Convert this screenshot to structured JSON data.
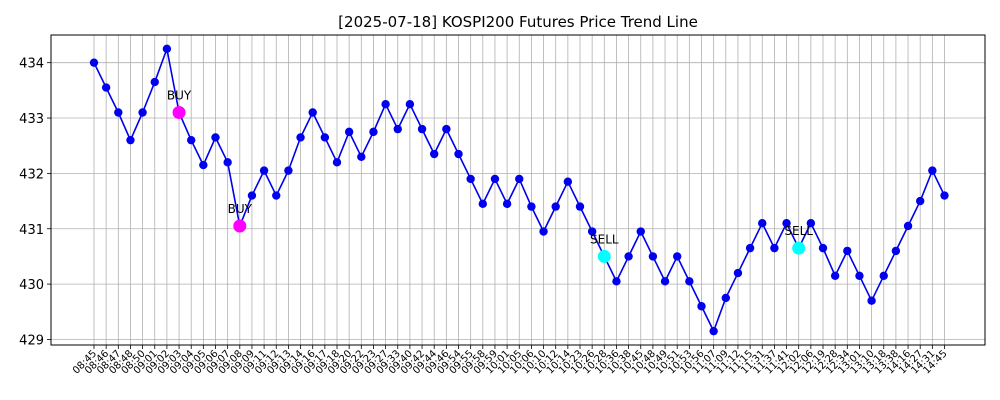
{
  "chart_data": {
    "type": "line",
    "title": "[2025-07-18] KOSPI200 Futures Price Trend Line",
    "xlabel": "",
    "ylabel": "",
    "ylim": [
      428.9,
      434.5
    ],
    "yticks": [
      429,
      430,
      431,
      432,
      433,
      434
    ],
    "grid": true,
    "line_color": "#0000ee",
    "x": [
      "08:45",
      "08:46",
      "08:47",
      "08:48",
      "08:50",
      "09:01",
      "09:02",
      "09:03",
      "09:04",
      "09:05",
      "09:06",
      "09:07",
      "09:08",
      "09:09",
      "09:11",
      "09:12",
      "09:13",
      "09:14",
      "09:16",
      "09:17",
      "09:18",
      "09:20",
      "09:22",
      "09:23",
      "09:27",
      "09:33",
      "09:40",
      "09:42",
      "09:44",
      "09:46",
      "09:54",
      "09:55",
      "09:58",
      "09:59",
      "10:01",
      "10:05",
      "10:06",
      "10:10",
      "10:12",
      "10:14",
      "10:23",
      "10:26",
      "10:28",
      "10:36",
      "10:38",
      "10:45",
      "10:48",
      "10:49",
      "10:51",
      "10:53",
      "10:56",
      "11:07",
      "11:09",
      "11:12",
      "11:15",
      "11:31",
      "11:37",
      "11:41",
      "12:02",
      "12:06",
      "12:19",
      "12:28",
      "12:34",
      "13:01",
      "13:10",
      "13:18",
      "13:38",
      "14:16",
      "14:27",
      "14:31",
      "14:45"
    ],
    "y": [
      434.0,
      433.55,
      433.1,
      432.6,
      433.1,
      433.65,
      434.25,
      433.1,
      432.6,
      432.15,
      432.65,
      432.2,
      431.05,
      431.6,
      432.05,
      431.6,
      432.05,
      432.65,
      433.1,
      432.65,
      432.2,
      432.75,
      432.3,
      432.75,
      433.25,
      432.8,
      433.25,
      432.8,
      432.35,
      432.8,
      432.35,
      431.9,
      431.45,
      431.9,
      431.45,
      431.9,
      431.4,
      430.95,
      431.4,
      431.85,
      431.4,
      430.95,
      430.5,
      430.05,
      430.5,
      430.95,
      430.5,
      430.05,
      430.5,
      430.05,
      429.6,
      429.15,
      429.75,
      430.2,
      430.65,
      431.1,
      430.65,
      431.1,
      430.65,
      431.1,
      430.65,
      430.15,
      430.6,
      430.15,
      429.7,
      430.15,
      430.6,
      431.05,
      431.5,
      432.05,
      431.6
    ],
    "signals": [
      {
        "label": "BUY",
        "index": 7,
        "value": 433.1,
        "color": "#ff00ff"
      },
      {
        "label": "BUY",
        "index": 12,
        "value": 431.05,
        "color": "#ff00ff"
      },
      {
        "label": "SELL",
        "index": 42,
        "value": 430.5,
        "color": "#00ffff"
      },
      {
        "label": "SELL",
        "index": 58,
        "value": 430.65,
        "color": "#00ffff"
      }
    ]
  }
}
